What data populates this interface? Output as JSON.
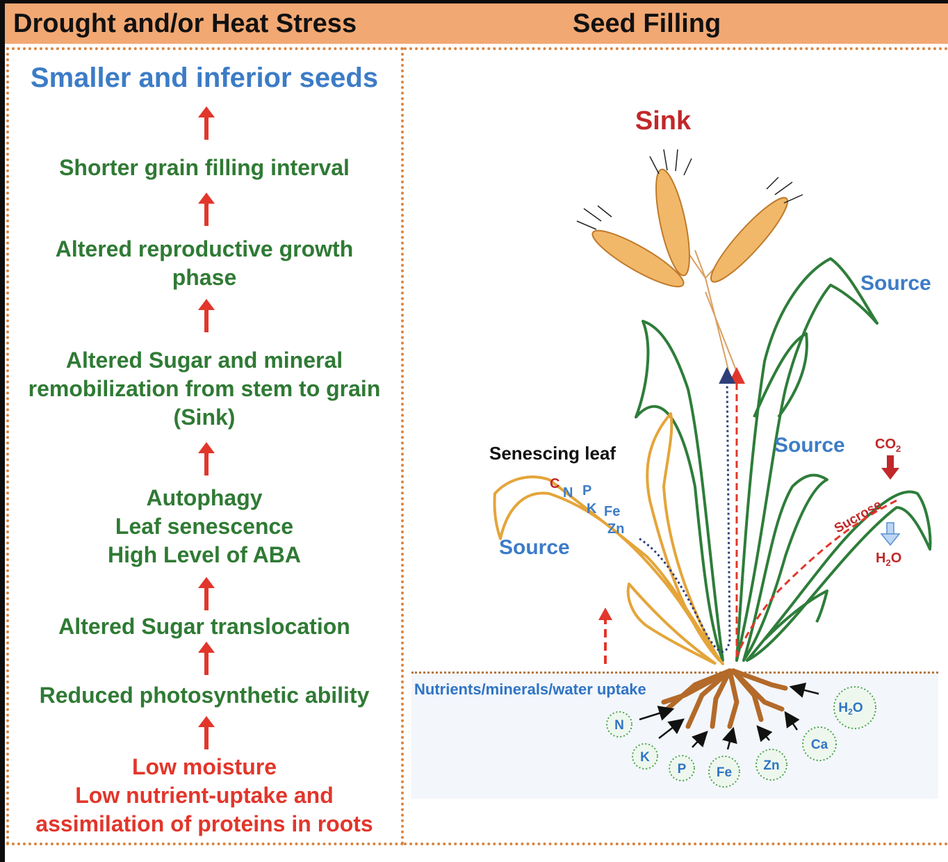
{
  "header": {
    "left_title": "Drought and/or Heat  Stress",
    "right_title": "Seed Filling"
  },
  "cascade": {
    "result": "Smaller and inferior seeds",
    "step1": "Shorter grain filling interval",
    "step2_line1": "Altered reproductive growth",
    "step2_line2": "phase",
    "step3_line1": "Altered Sugar and mineral",
    "step3_line2": "remobilization from stem to grain",
    "step3_line3": "(Sink)",
    "step4_line1": "Autophagy",
    "step4_line2": "Leaf senescence",
    "step4_line3": "High Level of ABA",
    "step5": "Altered Sugar translocation",
    "step6": "Reduced photosynthetic ability",
    "cause_line1": "Low moisture",
    "cause_line2": "Low nutrient-uptake and",
    "cause_line3": "assimilation of proteins in roots"
  },
  "plant": {
    "sink": "Sink",
    "source_top": "Source",
    "source_mid": "Source",
    "source_left": "Source",
    "senescing_leaf": "Senescing leaf",
    "nutrients": [
      "C",
      "N",
      "P",
      "K",
      "Fe",
      "Zn"
    ],
    "co2": "CO",
    "co2_sub": "2",
    "sucrose": "Sucrose",
    "h2o_leaf": "H",
    "h2o_leaf_sub": "2",
    "h2o_leaf_o": "O",
    "uptake_label": "Nutrients/minerals/water uptake",
    "soil_elements": [
      "N",
      "K",
      "P",
      "Fe",
      "Zn",
      "Ca"
    ],
    "soil_water": "H",
    "soil_water_sub": "2",
    "soil_water_o": "O"
  },
  "colors": {
    "header_bg": "#f2a873",
    "cascade_green": "#2f7a34",
    "title_blue": "#3c7cc6",
    "arrow_red": "#e2362b",
    "sink_red": "#c0282a",
    "leaf_green": "#2e7d3a",
    "leaf_gold": "#e4a53a",
    "root_brown": "#b36a2a"
  },
  "icons": {
    "up_arrow": "red-up-arrow-icon",
    "down_arrow": "red-down-arrow-icon",
    "water_arrow": "blue-down-arrow-icon"
  }
}
